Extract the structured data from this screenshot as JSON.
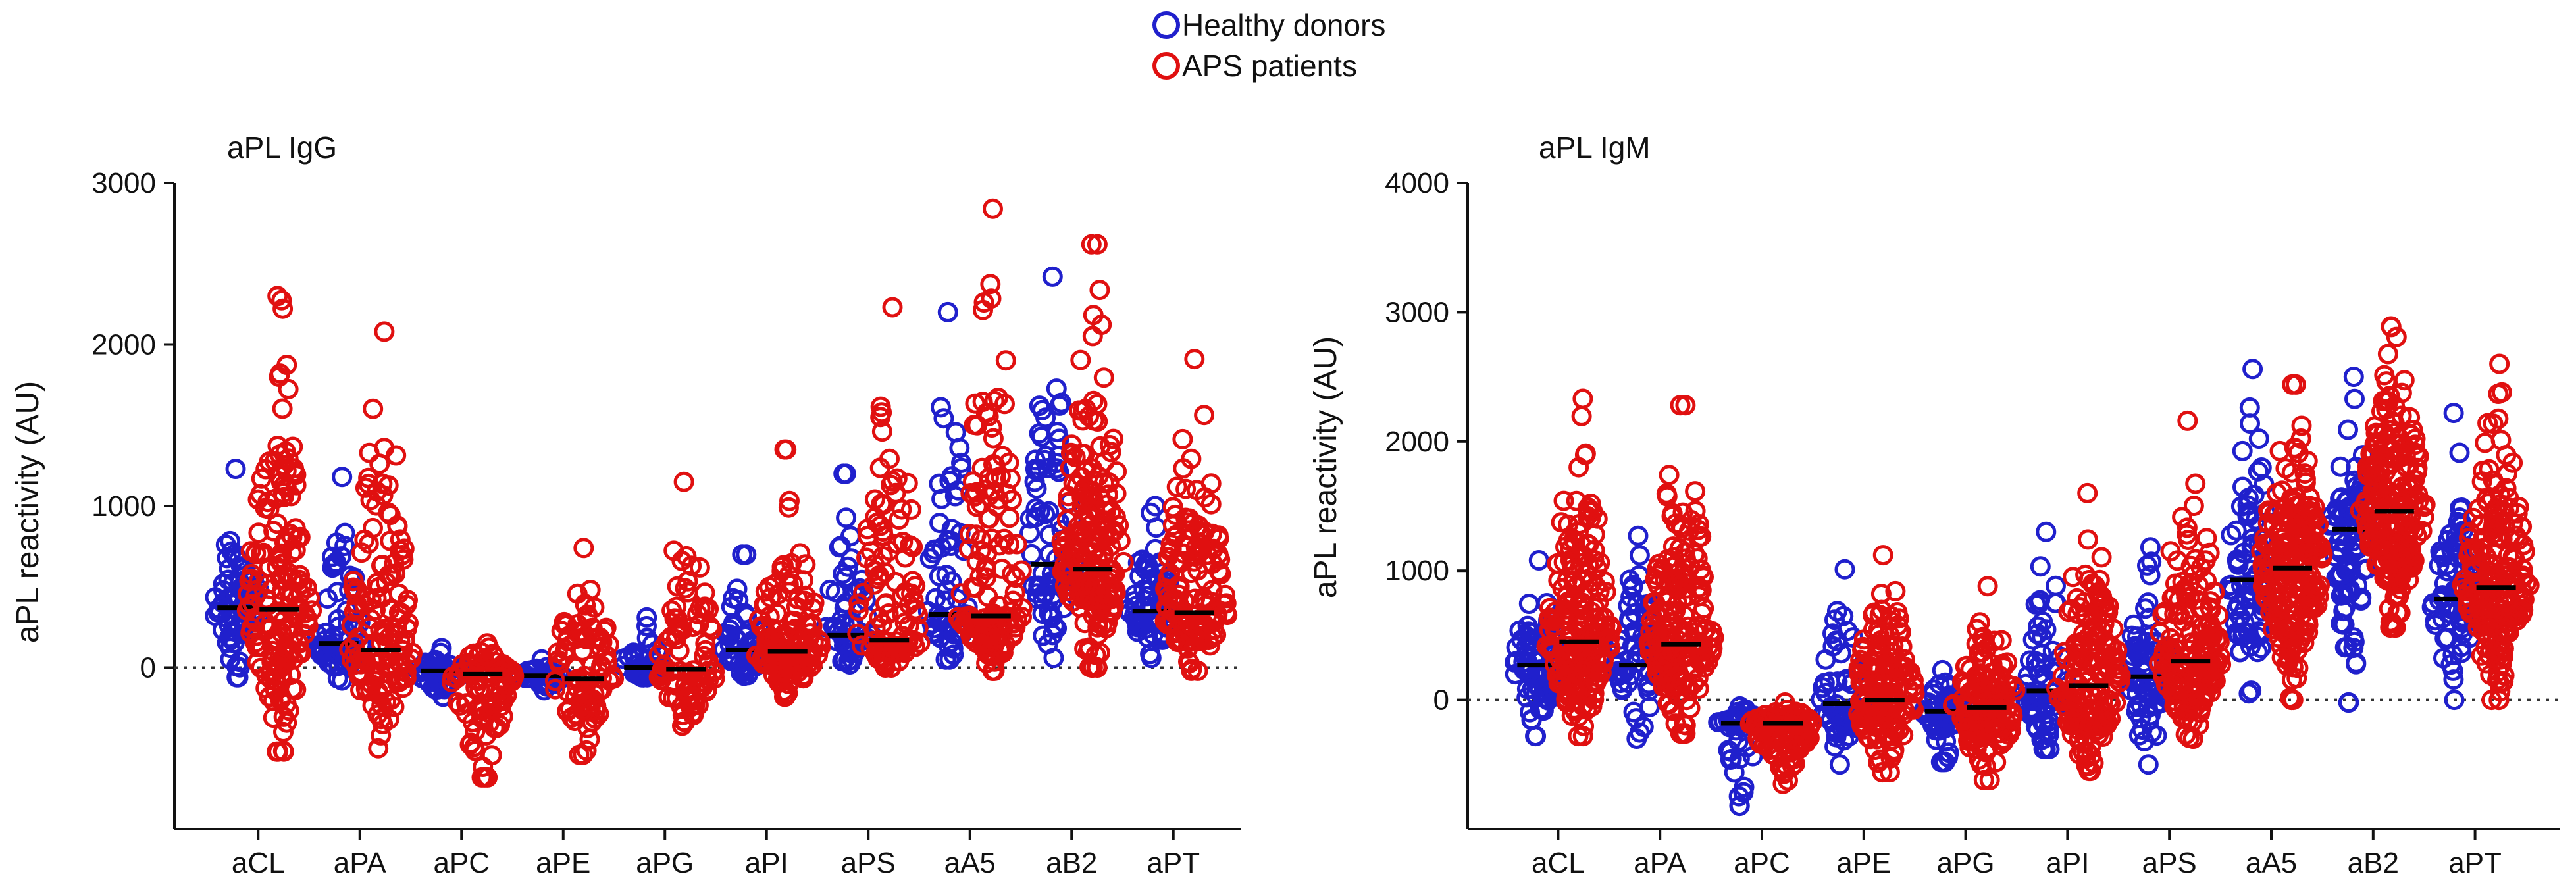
{
  "legend": {
    "items": [
      {
        "label": "Healthy donors",
        "color": "#2020cc"
      },
      {
        "label": "APS patients",
        "color": "#e01010"
      }
    ]
  },
  "colors": {
    "healthy": "#2020cc",
    "aps": "#e01010",
    "median": "#000000"
  },
  "chart_data": [
    {
      "type": "scatter",
      "subtype": "dot-strip (beeswarm) with median line",
      "title": "aPL IgG",
      "ylabel": "aPL reactivity (AU)",
      "xlabel": "",
      "ylim": [
        -1000,
        3000
      ],
      "yticks": [
        0,
        1000,
        2000,
        3000
      ],
      "zero_line": "dotted",
      "categories": [
        "aCL",
        "aPA",
        "aPC",
        "aPE",
        "aPG",
        "aPI",
        "aPS",
        "aA5",
        "aB2",
        "aPT"
      ],
      "series": [
        {
          "name": "Healthy donors",
          "medians": [
            370,
            150,
            -20,
            -50,
            0,
            110,
            200,
            330,
            640,
            350
          ],
          "range_low": [
            -60,
            -80,
            -180,
            -140,
            -60,
            -50,
            20,
            50,
            60,
            60
          ],
          "range_high": [
            1230,
            1180,
            120,
            50,
            310,
            700,
            1200,
            2200,
            2420,
            1000
          ],
          "counts": [
            70,
            60,
            45,
            35,
            40,
            55,
            55,
            60,
            80,
            65
          ]
        },
        {
          "name": "APS patients",
          "medians": [
            360,
            110,
            -40,
            -70,
            -10,
            100,
            170,
            320,
            610,
            340
          ],
          "range_low": [
            -520,
            -500,
            -680,
            -540,
            -360,
            -180,
            0,
            -20,
            0,
            -20
          ],
          "range_high": [
            2300,
            2080,
            150,
            740,
            1150,
            1350,
            2230,
            2840,
            2620,
            1910
          ],
          "counts": [
            170,
            140,
            90,
            90,
            90,
            140,
            110,
            150,
            200,
            150
          ]
        }
      ]
    },
    {
      "type": "scatter",
      "subtype": "dot-strip (beeswarm) with median line",
      "title": "aPL IgM",
      "ylabel": "aPL reactivity (AU)",
      "xlabel": "",
      "ylim": [
        -1000,
        4000
      ],
      "yticks": [
        0,
        1000,
        2000,
        3000,
        4000
      ],
      "zero_line": "dotted",
      "categories": [
        "aCL",
        "aPA",
        "aPC",
        "aPE",
        "aPG",
        "aPI",
        "aPS",
        "aA5",
        "aB2",
        "aPT"
      ],
      "series": [
        {
          "name": "Healthy donors",
          "medians": [
            270,
            270,
            -180,
            -30,
            -90,
            70,
            180,
            930,
            1320,
            780
          ],
          "range_low": [
            -280,
            -300,
            -820,
            -500,
            -480,
            -380,
            -500,
            50,
            -20,
            0
          ],
          "range_high": [
            1080,
            1270,
            -50,
            1010,
            230,
            1300,
            1180,
            2560,
            2500,
            2220
          ],
          "counts": [
            75,
            70,
            55,
            60,
            55,
            70,
            65,
            80,
            90,
            75
          ]
        },
        {
          "name": "APS patients",
          "medians": [
            450,
            430,
            -180,
            0,
            -60,
            110,
            300,
            1020,
            1460,
            870
          ],
          "range_low": [
            -280,
            -260,
            -650,
            -560,
            -620,
            -550,
            -300,
            0,
            560,
            0
          ],
          "range_high": [
            2330,
            2280,
            -20,
            1120,
            880,
            1600,
            2160,
            2440,
            2890,
            2600
          ],
          "counts": [
            200,
            190,
            110,
            150,
            140,
            160,
            170,
            220,
            240,
            200
          ]
        }
      ]
    }
  ]
}
